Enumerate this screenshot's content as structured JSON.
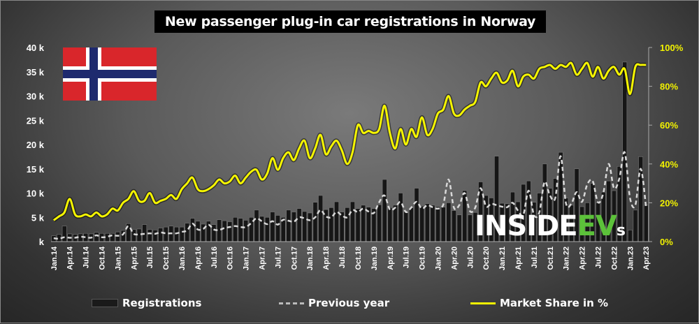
{
  "chart_data": {
    "type": "bar",
    "title": "New passenger plug-in car registrations in Norway",
    "left_axis": {
      "ticks": [
        "k",
        "5 k",
        "10 k",
        "15 k",
        "20 k",
        "25 k",
        "30 k",
        "35 k",
        "40 k"
      ],
      "range": [
        0,
        40000
      ]
    },
    "right_axis": {
      "ticks": [
        "0%",
        "20%",
        "40%",
        "60%",
        "80%",
        "100%"
      ],
      "range": [
        0,
        100
      ]
    },
    "x_tick_labels": [
      "Jan.14",
      "Apr.14",
      "Jul.14",
      "Oct.14",
      "Jan.15",
      "Apr.15",
      "Jul.15",
      "Oct.15",
      "Jan.16",
      "Apr.16",
      "Jul.16",
      "Oct.16",
      "Jan.17",
      "Apr.17",
      "Jul.17",
      "Oct.17",
      "Jan.18",
      "Apr.18",
      "Jul.18",
      "Oct.18",
      "Jan.19",
      "Apr.19",
      "Jul.19",
      "Oct.19",
      "Jan.20",
      "Apr.20",
      "Jul.20",
      "Oct.20",
      "Jan.21",
      "Apr.21",
      "Jul.21",
      "Oct.21",
      "Jan.22",
      "Apr.22",
      "Jul.22",
      "Oct.22",
      "Jan.23",
      "Apr.23"
    ],
    "x_start": "Jan.14",
    "legend": {
      "placement": "bottom",
      "registrations": "Registrations",
      "previous_year": "Previous year",
      "market_share": "Market Share in %"
    },
    "series": [
      {
        "name": "Registrations",
        "unit": "thousands",
        "type": "bar",
        "values": [
          1.2,
          1.5,
          3.2,
          1.6,
          1.5,
          1.6,
          1.7,
          1.6,
          1.9,
          1.7,
          1.7,
          1.7,
          2.0,
          2.3,
          3.7,
          2.5,
          2.6,
          3.5,
          2.5,
          2.4,
          2.8,
          3.0,
          3.2,
          3.0,
          3.0,
          3.8,
          4.8,
          4.2,
          3.6,
          4.2,
          3.5,
          4.5,
          4.3,
          4.1,
          5.0,
          4.8,
          4.4,
          5.0,
          6.5,
          5.2,
          5.0,
          6.1,
          5.4,
          5.0,
          6.5,
          6.1,
          6.8,
          6.2,
          5.9,
          8.1,
          9.5,
          6.6,
          7.0,
          8.2,
          6.1,
          7.0,
          8.2,
          6.8,
          7.5,
          7.1,
          6.8,
          7.6,
          12.8,
          7.0,
          7.5,
          10.0,
          6.3,
          7.0,
          11.0,
          7.3,
          7.8,
          7.5,
          7.2,
          7.1,
          8.0,
          6.4,
          5.5,
          10.5,
          5.5,
          6.0,
          12.3,
          9.5,
          9.0,
          17.6,
          7.9,
          7.8,
          10.2,
          8.2,
          11.8,
          12.5,
          8.1,
          10.0,
          16.0,
          11.0,
          13.0,
          18.4,
          9.0,
          7.5,
          15.0,
          7.2,
          8.0,
          12.0,
          8.0,
          10.2,
          12.5,
          10.5,
          15.5,
          37.0,
          2.4,
          6.5,
          17.5,
          7.5
        ]
      },
      {
        "name": "Previous year",
        "unit": "thousands",
        "type": "line-dashed",
        "values": [
          0.7,
          0.6,
          0.9,
          0.8,
          0.8,
          1.0,
          0.9,
          0.8,
          1.3,
          0.9,
          1.0,
          1.3,
          1.2,
          1.5,
          3.2,
          1.6,
          1.5,
          1.6,
          1.7,
          1.6,
          1.9,
          1.7,
          1.7,
          1.7,
          2.0,
          2.3,
          3.7,
          2.5,
          2.6,
          3.5,
          2.5,
          2.4,
          2.8,
          3.0,
          3.2,
          3.0,
          3.0,
          3.8,
          4.8,
          4.2,
          3.6,
          4.2,
          3.5,
          4.5,
          4.3,
          4.1,
          5.0,
          4.8,
          4.4,
          5.0,
          6.5,
          5.2,
          5.0,
          6.1,
          5.4,
          5.0,
          6.5,
          6.1,
          6.8,
          6.2,
          5.9,
          8.1,
          9.5,
          6.6,
          7.0,
          8.2,
          6.1,
          7.0,
          8.2,
          6.8,
          7.5,
          7.1,
          6.8,
          7.6,
          12.8,
          7.0,
          7.5,
          10.0,
          6.3,
          7.0,
          11.0,
          7.3,
          7.8,
          7.5,
          7.2,
          7.1,
          8.0,
          6.4,
          5.5,
          10.5,
          5.5,
          6.0,
          12.3,
          9.5,
          9.0,
          17.6,
          7.9,
          7.8,
          10.2,
          8.2,
          11.8,
          12.5,
          8.1,
          10.0,
          16.0,
          11.0,
          13.0,
          18.4,
          9.0,
          7.5,
          15.0,
          7.2
        ]
      },
      {
        "name": "Market Share in %",
        "unit": "percent",
        "type": "line",
        "axis": "right",
        "values": [
          11,
          13,
          15,
          22,
          14,
          13,
          14,
          13,
          15,
          13,
          14,
          17,
          16,
          20,
          22,
          26,
          21,
          21,
          25,
          20,
          21,
          22,
          24,
          22,
          27,
          30,
          33,
          27,
          26,
          27,
          29,
          32,
          30,
          31,
          34,
          30,
          33,
          36,
          37,
          32,
          35,
          43,
          37,
          43,
          46,
          42,
          48,
          52,
          43,
          48,
          55,
          45,
          49,
          52,
          47,
          40,
          46,
          60,
          56,
          57,
          56,
          58,
          70,
          56,
          48,
          58,
          50,
          58,
          54,
          64,
          55,
          58,
          66,
          68,
          75,
          66,
          65,
          68,
          70,
          72,
          82,
          80,
          84,
          87,
          82,
          83,
          88,
          80,
          85,
          86,
          84,
          89,
          90,
          91,
          89,
          91,
          90,
          92,
          86,
          89,
          92,
          85,
          90,
          84,
          88,
          90,
          86,
          89,
          76,
          90,
          91,
          91
        ]
      }
    ]
  },
  "logo": {
    "text_white": "INSIDE",
    "text_green": "EV",
    "text_small": "s"
  },
  "colors": {
    "bar": "#111111",
    "prev": "#d0d0d0",
    "share": "#f5f500",
    "logo_green": "#5cc13a"
  }
}
